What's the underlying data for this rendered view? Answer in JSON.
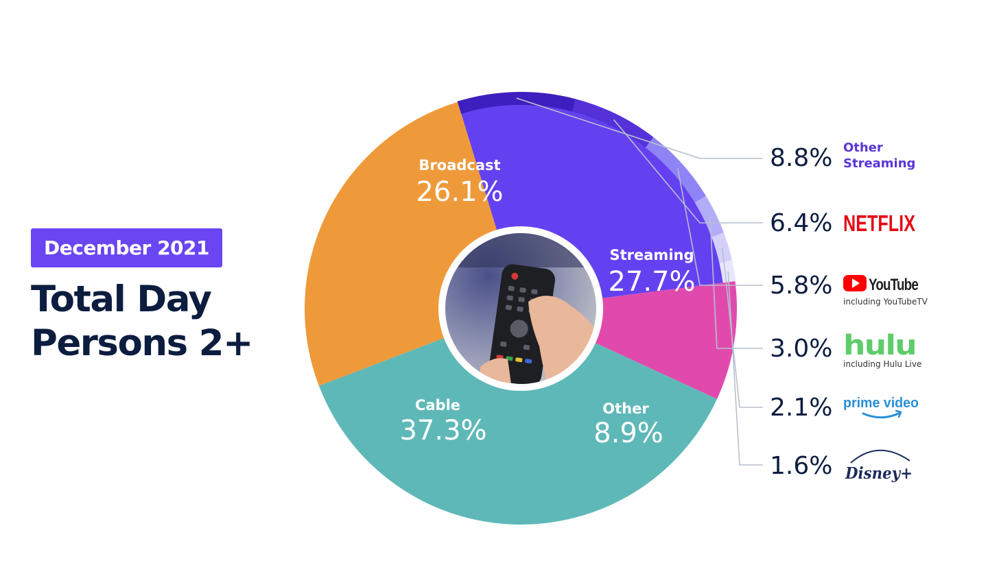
{
  "header": {
    "period_badge": "December 2021",
    "title_line1": "Total Day",
    "title_line2": "Persons 2+"
  },
  "colors": {
    "badge": "#6a46f2",
    "title": "#0c1d3f",
    "broadcast": "#ef9a3a",
    "streaming": "#6441f0",
    "other": "#e14aad",
    "cable": "#5fb8b8",
    "streaming_detail": [
      "#3d1fbf",
      "#5432d8",
      "#8e84f5",
      "#b2adf8",
      "#d4d0fb",
      "#e8e6fd"
    ]
  },
  "icons": {
    "center_photo": "tv-remote-photo",
    "brands": [
      "other-streaming-text",
      "netflix-logo",
      "youtube-logo",
      "hulu-logo",
      "prime-video-logo",
      "disney-plus-logo"
    ]
  },
  "chart_data": {
    "type": "pie",
    "title": "Total Day Persons 2+",
    "subtitle": "December 2021",
    "categories": [
      "Broadcast",
      "Streaming",
      "Other",
      "Cable"
    ],
    "values": [
      26.1,
      27.7,
      8.9,
      37.3
    ],
    "value_labels": [
      "26.1%",
      "27.7%",
      "8.9%",
      "37.3%"
    ],
    "unit": "%",
    "streaming_breakdown": {
      "parent": "Streaming",
      "categories": [
        "Other Streaming",
        "NETFLIX",
        "YouTube",
        "hulu",
        "prime video",
        "Disney+"
      ],
      "values": [
        8.8,
        6.4,
        5.8,
        3.0,
        2.1,
        1.6
      ],
      "value_labels": [
        "8.8%",
        "6.4%",
        "5.8%",
        "3.0%",
        "2.1%",
        "1.6%"
      ],
      "notes": [
        "",
        "",
        "including YouTubeTV",
        "including Hulu Live",
        "",
        ""
      ]
    }
  }
}
